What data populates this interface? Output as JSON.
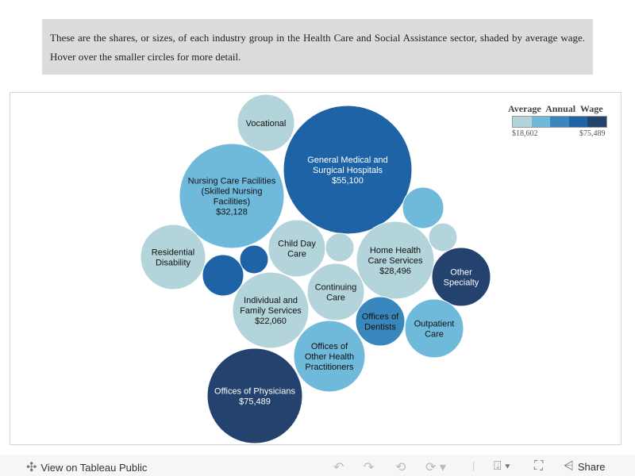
{
  "intro_text": "These are the shares, or sizes, of each industry group  in the Health Care and Social Assistance sector, shaded by average wage. Hover over the smaller circles for more detail.",
  "colors": [
    "#b3d4da",
    "#6fb9db",
    "#3a87bd",
    "#1d63a6",
    "#24426e"
  ],
  "legend": {
    "title": "Average Annual Wage",
    "min": "$18,602",
    "max": "$75,489"
  },
  "chart_data": {
    "type": "bubble",
    "color_legend": "Average Annual Wage",
    "color_range": [
      "$18,602",
      "$75,489"
    ],
    "bubbles": [
      {
        "label": "Vocational",
        "wage": "",
        "tier": 0
      },
      {
        "label": "General Medical and Surgical Hospitals",
        "wage": "$55,100",
        "tier": 3
      },
      {
        "label": "Nursing Care Facilities (Skilled Nursing Facilities)",
        "wage": "$32,128",
        "tier": 1
      },
      {
        "label": "Residential Disability",
        "wage": "",
        "tier": 0
      },
      {
        "label": "",
        "wage": "",
        "tier": 3
      },
      {
        "label": "",
        "wage": "",
        "tier": 3
      },
      {
        "label": "Child Day Care",
        "wage": "",
        "tier": 0
      },
      {
        "label": "",
        "wage": "",
        "tier": 0
      },
      {
        "label": "Home Health Care Services",
        "wage": "$28,496",
        "tier": 0
      },
      {
        "label": "",
        "wage": "",
        "tier": 1
      },
      {
        "label": "",
        "wage": "",
        "tier": 0
      },
      {
        "label": "Other Specialty",
        "wage": "",
        "tier": 4
      },
      {
        "label": "Individual and Family Services",
        "wage": "$22,060",
        "tier": 0
      },
      {
        "label": "Continuing Care",
        "wage": "",
        "tier": 0
      },
      {
        "label": "Offices of Dentists",
        "wage": "",
        "tier": 2
      },
      {
        "label": "Outpatient Care",
        "wage": "",
        "tier": 1
      },
      {
        "label": "Offices of Other Health Practitioners",
        "wage": "",
        "tier": 1
      },
      {
        "label": "Offices of Physicians",
        "wage": "$75,489",
        "tier": 4
      }
    ]
  },
  "toolbar": {
    "view_label": "View on Tableau Public",
    "share_label": "Share"
  }
}
